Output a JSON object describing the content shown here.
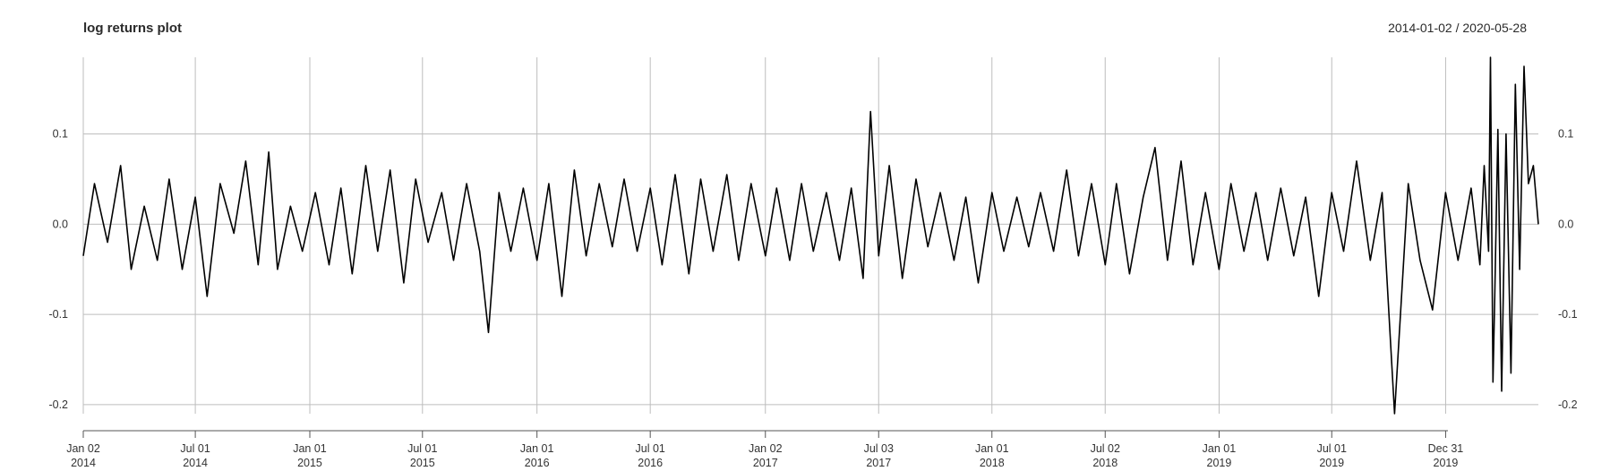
{
  "chart_data": {
    "type": "line",
    "title": "log returns plot",
    "date_range": "2014-01-02 / 2020-05-28",
    "x_start": "2014-01-02",
    "x_end": "2020-05-28",
    "ylim": [
      -0.21,
      0.185
    ],
    "y_ticks": [
      {
        "value": 0.1,
        "label": "0.1"
      },
      {
        "value": 0.0,
        "label": "0.0"
      },
      {
        "value": -0.1,
        "label": "-0.1"
      },
      {
        "value": -0.2,
        "label": "-0.2"
      }
    ],
    "x_ticks": [
      {
        "date": "2014-01-02",
        "line1": "Jan 02",
        "line2": "2014"
      },
      {
        "date": "2014-07-01",
        "line1": "Jul 01",
        "line2": "2014"
      },
      {
        "date": "2015-01-01",
        "line1": "Jan 01",
        "line2": "2015"
      },
      {
        "date": "2015-07-01",
        "line1": "Jul 01",
        "line2": "2015"
      },
      {
        "date": "2016-01-01",
        "line1": "Jan 01",
        "line2": "2016"
      },
      {
        "date": "2016-07-01",
        "line1": "Jul 01",
        "line2": "2016"
      },
      {
        "date": "2017-01-02",
        "line1": "Jan 02",
        "line2": "2017"
      },
      {
        "date": "2017-07-03",
        "line1": "Jul 03",
        "line2": "2017"
      },
      {
        "date": "2018-01-01",
        "line1": "Jan 01",
        "line2": "2018"
      },
      {
        "date": "2018-07-02",
        "line1": "Jul 02",
        "line2": "2018"
      },
      {
        "date": "2019-01-01",
        "line1": "Jan 01",
        "line2": "2019"
      },
      {
        "date": "2019-07-01",
        "line1": "Jul 01",
        "line2": "2019"
      },
      {
        "date": "2019-12-31",
        "line1": "Dec 31",
        "line2": "2019"
      }
    ],
    "grid": true,
    "colors": {
      "series": "#000000",
      "grid": "#bdbdbd",
      "axis": "#555555"
    },
    "series": [
      {
        "x": [
          "2014-01-02",
          "2014-01-20",
          "2014-02-10",
          "2014-03-03",
          "2014-03-20",
          "2014-04-10",
          "2014-05-01",
          "2014-05-20",
          "2014-06-10",
          "2014-07-01",
          "2014-07-20",
          "2014-08-10",
          "2014-09-01",
          "2014-09-20",
          "2014-10-10",
          "2014-10-27",
          "2014-11-10",
          "2014-12-01",
          "2014-12-20",
          "2015-01-10",
          "2015-02-01",
          "2015-02-20",
          "2015-03-10",
          "2015-04-01",
          "2015-04-20",
          "2015-05-10",
          "2015-06-01",
          "2015-06-20",
          "2015-07-10",
          "2015-08-01",
          "2015-08-20",
          "2015-09-10",
          "2015-10-01",
          "2015-10-15",
          "2015-11-01",
          "2015-11-20",
          "2015-12-10",
          "2016-01-01",
          "2016-01-20",
          "2016-02-10",
          "2016-03-01",
          "2016-03-20",
          "2016-04-10",
          "2016-05-01",
          "2016-05-20",
          "2016-06-10",
          "2016-07-01",
          "2016-07-20",
          "2016-08-10",
          "2016-09-01",
          "2016-09-20",
          "2016-10-10",
          "2016-11-01",
          "2016-11-20",
          "2016-12-10",
          "2017-01-02",
          "2017-01-20",
          "2017-02-10",
          "2017-03-01",
          "2017-03-20",
          "2017-04-10",
          "2017-05-01",
          "2017-05-20",
          "2017-06-08",
          "2017-06-20",
          "2017-07-03",
          "2017-07-20",
          "2017-08-10",
          "2017-09-01",
          "2017-09-20",
          "2017-10-10",
          "2017-11-01",
          "2017-11-20",
          "2017-12-10",
          "2018-01-01",
          "2018-01-20",
          "2018-02-10",
          "2018-03-01",
          "2018-03-20",
          "2018-04-10",
          "2018-05-01",
          "2018-05-20",
          "2018-06-10",
          "2018-07-02",
          "2018-07-20",
          "2018-08-10",
          "2018-09-01",
          "2018-09-20",
          "2018-10-10",
          "2018-11-01",
          "2018-11-20",
          "2018-12-10",
          "2019-01-01",
          "2019-01-20",
          "2019-02-10",
          "2019-03-01",
          "2019-03-20",
          "2019-04-10",
          "2019-05-01",
          "2019-05-20",
          "2019-06-10",
          "2019-07-01",
          "2019-07-20",
          "2019-08-10",
          "2019-09-01",
          "2019-09-20",
          "2019-10-10",
          "2019-11-01",
          "2019-11-20",
          "2019-12-10",
          "2019-12-31",
          "2020-01-20",
          "2020-02-10",
          "2020-02-24",
          "2020-03-02",
          "2020-03-09",
          "2020-03-12",
          "2020-03-16",
          "2020-03-19",
          "2020-03-24",
          "2020-03-30",
          "2020-04-06",
          "2020-04-14",
          "2020-04-21",
          "2020-04-28",
          "2020-05-05",
          "2020-05-12",
          "2020-05-20",
          "2020-05-28"
        ],
        "y": [
          -0.035,
          0.045,
          -0.02,
          0.065,
          -0.05,
          0.02,
          -0.04,
          0.05,
          -0.05,
          0.03,
          -0.08,
          0.045,
          -0.01,
          0.07,
          -0.045,
          0.08,
          -0.05,
          0.02,
          -0.03,
          0.035,
          -0.045,
          0.04,
          -0.055,
          0.065,
          -0.03,
          0.06,
          -0.065,
          0.05,
          -0.02,
          0.035,
          -0.04,
          0.045,
          -0.03,
          -0.12,
          0.035,
          -0.03,
          0.04,
          -0.04,
          0.045,
          -0.08,
          0.06,
          -0.035,
          0.045,
          -0.025,
          0.05,
          -0.03,
          0.04,
          -0.045,
          0.055,
          -0.055,
          0.05,
          -0.03,
          0.055,
          -0.04,
          0.045,
          -0.035,
          0.04,
          -0.04,
          0.045,
          -0.03,
          0.035,
          -0.04,
          0.04,
          -0.06,
          0.125,
          -0.035,
          0.065,
          -0.06,
          0.05,
          -0.025,
          0.035,
          -0.04,
          0.03,
          -0.065,
          0.035,
          -0.03,
          0.03,
          -0.025,
          0.035,
          -0.03,
          0.06,
          -0.035,
          0.045,
          -0.045,
          0.045,
          -0.055,
          0.03,
          0.085,
          -0.04,
          0.07,
          -0.045,
          0.035,
          -0.05,
          0.045,
          -0.03,
          0.035,
          -0.04,
          0.04,
          -0.035,
          0.03,
          -0.08,
          0.035,
          -0.03,
          0.07,
          -0.04,
          0.035,
          -0.21,
          0.045,
          -0.04,
          -0.095,
          0.035,
          -0.04,
          0.04,
          -0.045,
          0.065,
          -0.03,
          0.185,
          -0.175,
          -0.08,
          0.105,
          -0.185,
          0.1,
          -0.165,
          0.155,
          -0.05,
          0.175,
          0.045,
          0.065,
          0.0
        ]
      }
    ]
  }
}
